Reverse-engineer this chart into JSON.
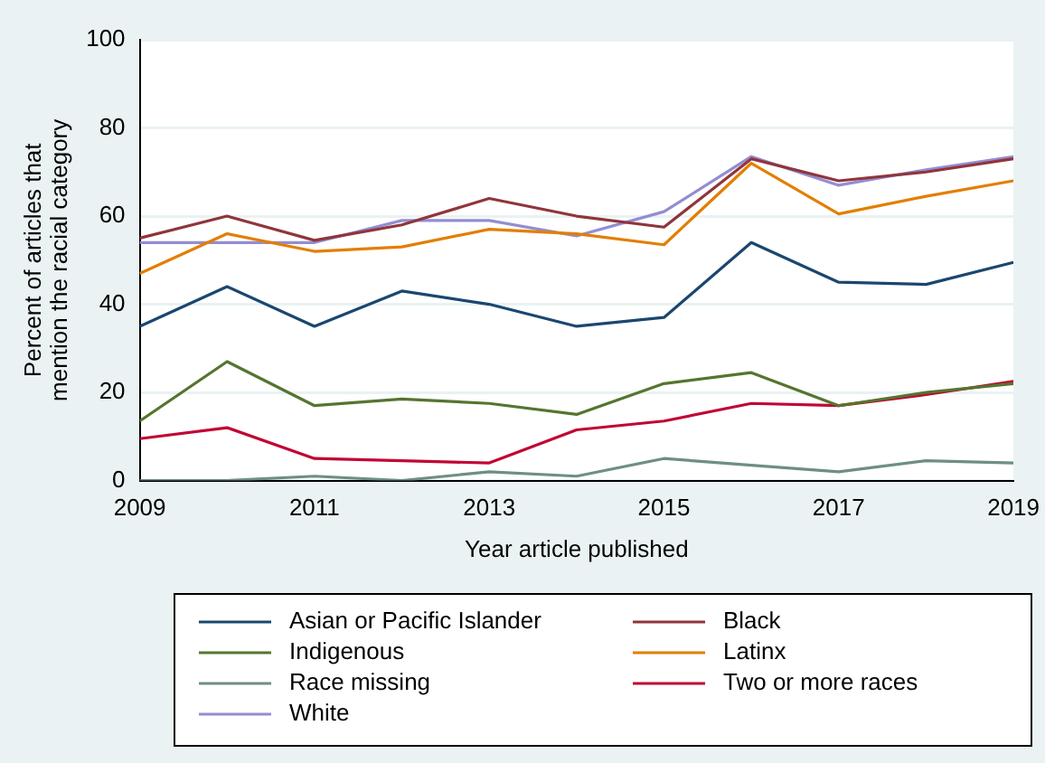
{
  "chart_data": {
    "type": "line",
    "xlabel": "Year article published",
    "ylabel": "Percent of articles that mention the racial category",
    "x": [
      2009,
      2010,
      2011,
      2012,
      2013,
      2014,
      2015,
      2016,
      2017,
      2018,
      2019
    ],
    "xlim": [
      2009,
      2019
    ],
    "xticks": [
      2009,
      2011,
      2013,
      2015,
      2017,
      2019
    ],
    "ylim": [
      0,
      100
    ],
    "yticks": [
      0,
      20,
      40,
      60,
      80,
      100
    ],
    "grid": "y",
    "legend": "bottom",
    "marker": "none",
    "line_style": "solid",
    "series": [
      {
        "name": "Asian or Pacific Islander",
        "color": "#1a476f",
        "values": [
          35,
          44,
          35,
          43,
          40,
          35,
          37,
          54,
          45,
          44.5,
          49.5
        ]
      },
      {
        "name": "Black",
        "color": "#90353b",
        "values": [
          55,
          60,
          54.5,
          58,
          64,
          60,
          57.5,
          73,
          68,
          70,
          73
        ]
      },
      {
        "name": "Indigenous",
        "color": "#55752f",
        "values": [
          13.5,
          27,
          17,
          18.5,
          17.5,
          15,
          22,
          24.5,
          17,
          20,
          22
        ]
      },
      {
        "name": "Latinx",
        "color": "#e37e00",
        "values": [
          47,
          56,
          52,
          53,
          57,
          56,
          53.5,
          72,
          60.5,
          64.5,
          68
        ]
      },
      {
        "name": "Race missing",
        "color": "#6e8e84",
        "values": [
          0,
          0,
          1,
          0,
          2,
          1,
          5,
          3.5,
          2,
          4.5,
          4
        ]
      },
      {
        "name": "Two or more races",
        "color": "#c10534",
        "values": [
          9.5,
          12,
          5,
          4.5,
          4,
          11.5,
          13.5,
          17.5,
          17,
          19.5,
          22.5
        ]
      },
      {
        "name": "White",
        "color": "#938dd2",
        "values": [
          54,
          54,
          54,
          59,
          59,
          55.5,
          61,
          73.5,
          67,
          70.5,
          73.5
        ]
      }
    ]
  }
}
